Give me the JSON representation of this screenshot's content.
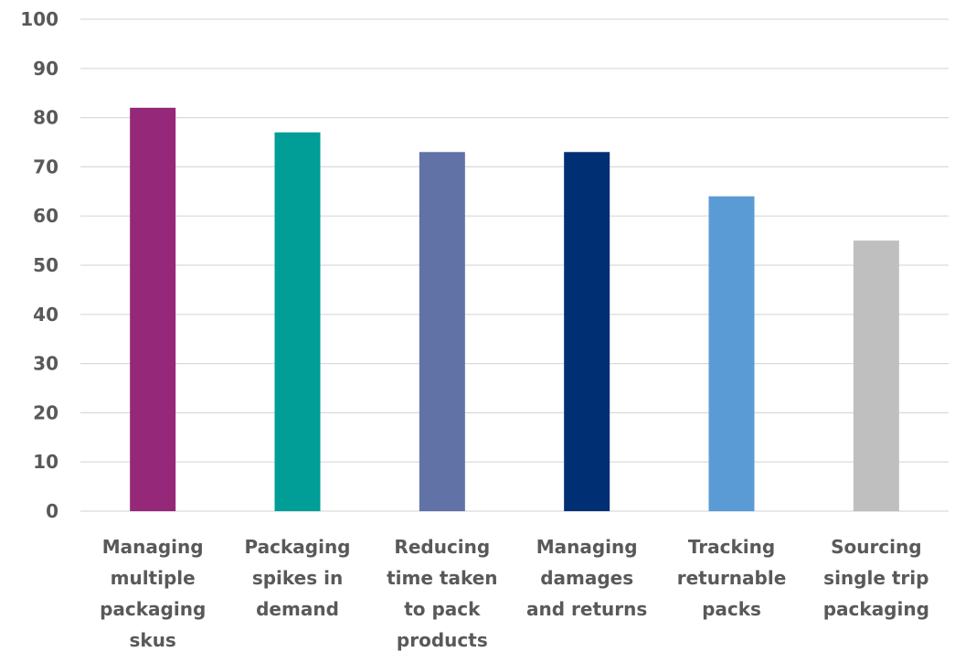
{
  "chart_data": {
    "type": "bar",
    "title": "",
    "xlabel": "",
    "ylabel": "",
    "ylim": [
      0,
      100
    ],
    "yticks": [
      0,
      10,
      20,
      30,
      40,
      50,
      60,
      70,
      80,
      90,
      100
    ],
    "grid": true,
    "legend": "none",
    "categories": [
      [
        "Managing",
        "multiple",
        "packaging",
        "skus"
      ],
      [
        "Packaging",
        "spikes in",
        "demand"
      ],
      [
        "Reducing",
        "time taken",
        "to pack",
        "products"
      ],
      [
        "Managing",
        "damages",
        "and returns"
      ],
      [
        "Tracking",
        "returnable",
        "packs"
      ],
      [
        "Sourcing",
        "single trip",
        "packaging"
      ]
    ],
    "values": [
      82,
      77,
      73,
      73,
      64,
      55
    ],
    "colors": [
      "#952878",
      "#009e96",
      "#6172a6",
      "#002f74",
      "#5b9bd5",
      "#bfbfbf"
    ]
  }
}
